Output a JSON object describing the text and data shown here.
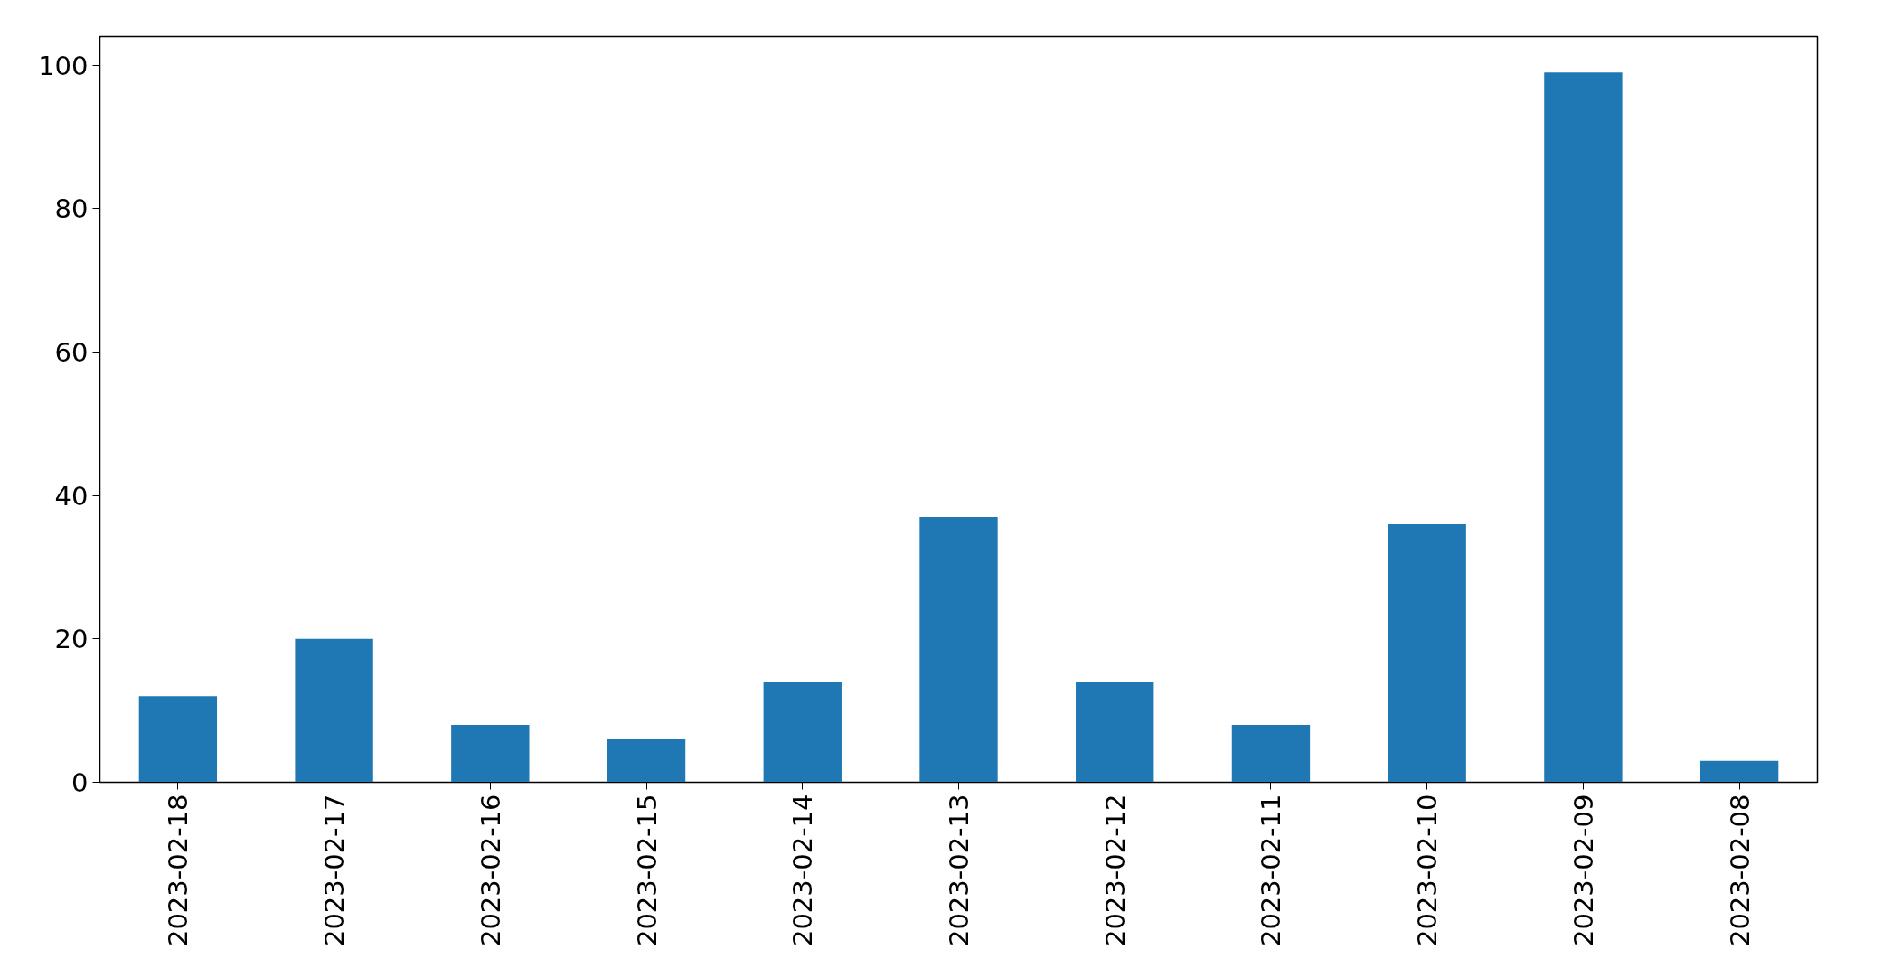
{
  "chart_data": {
    "type": "bar",
    "categories": [
      "2023-02-18",
      "2023-02-17",
      "2023-02-16",
      "2023-02-15",
      "2023-02-14",
      "2023-02-13",
      "2023-02-12",
      "2023-02-11",
      "2023-02-10",
      "2023-02-09",
      "2023-02-08"
    ],
    "values": [
      12,
      20,
      8,
      6,
      14,
      37,
      14,
      8,
      36,
      99,
      3
    ],
    "color": "#1f77b4",
    "ylim": [
      0,
      104
    ],
    "yticks": [
      0,
      20,
      40,
      60,
      80,
      100
    ],
    "grid": false
  }
}
